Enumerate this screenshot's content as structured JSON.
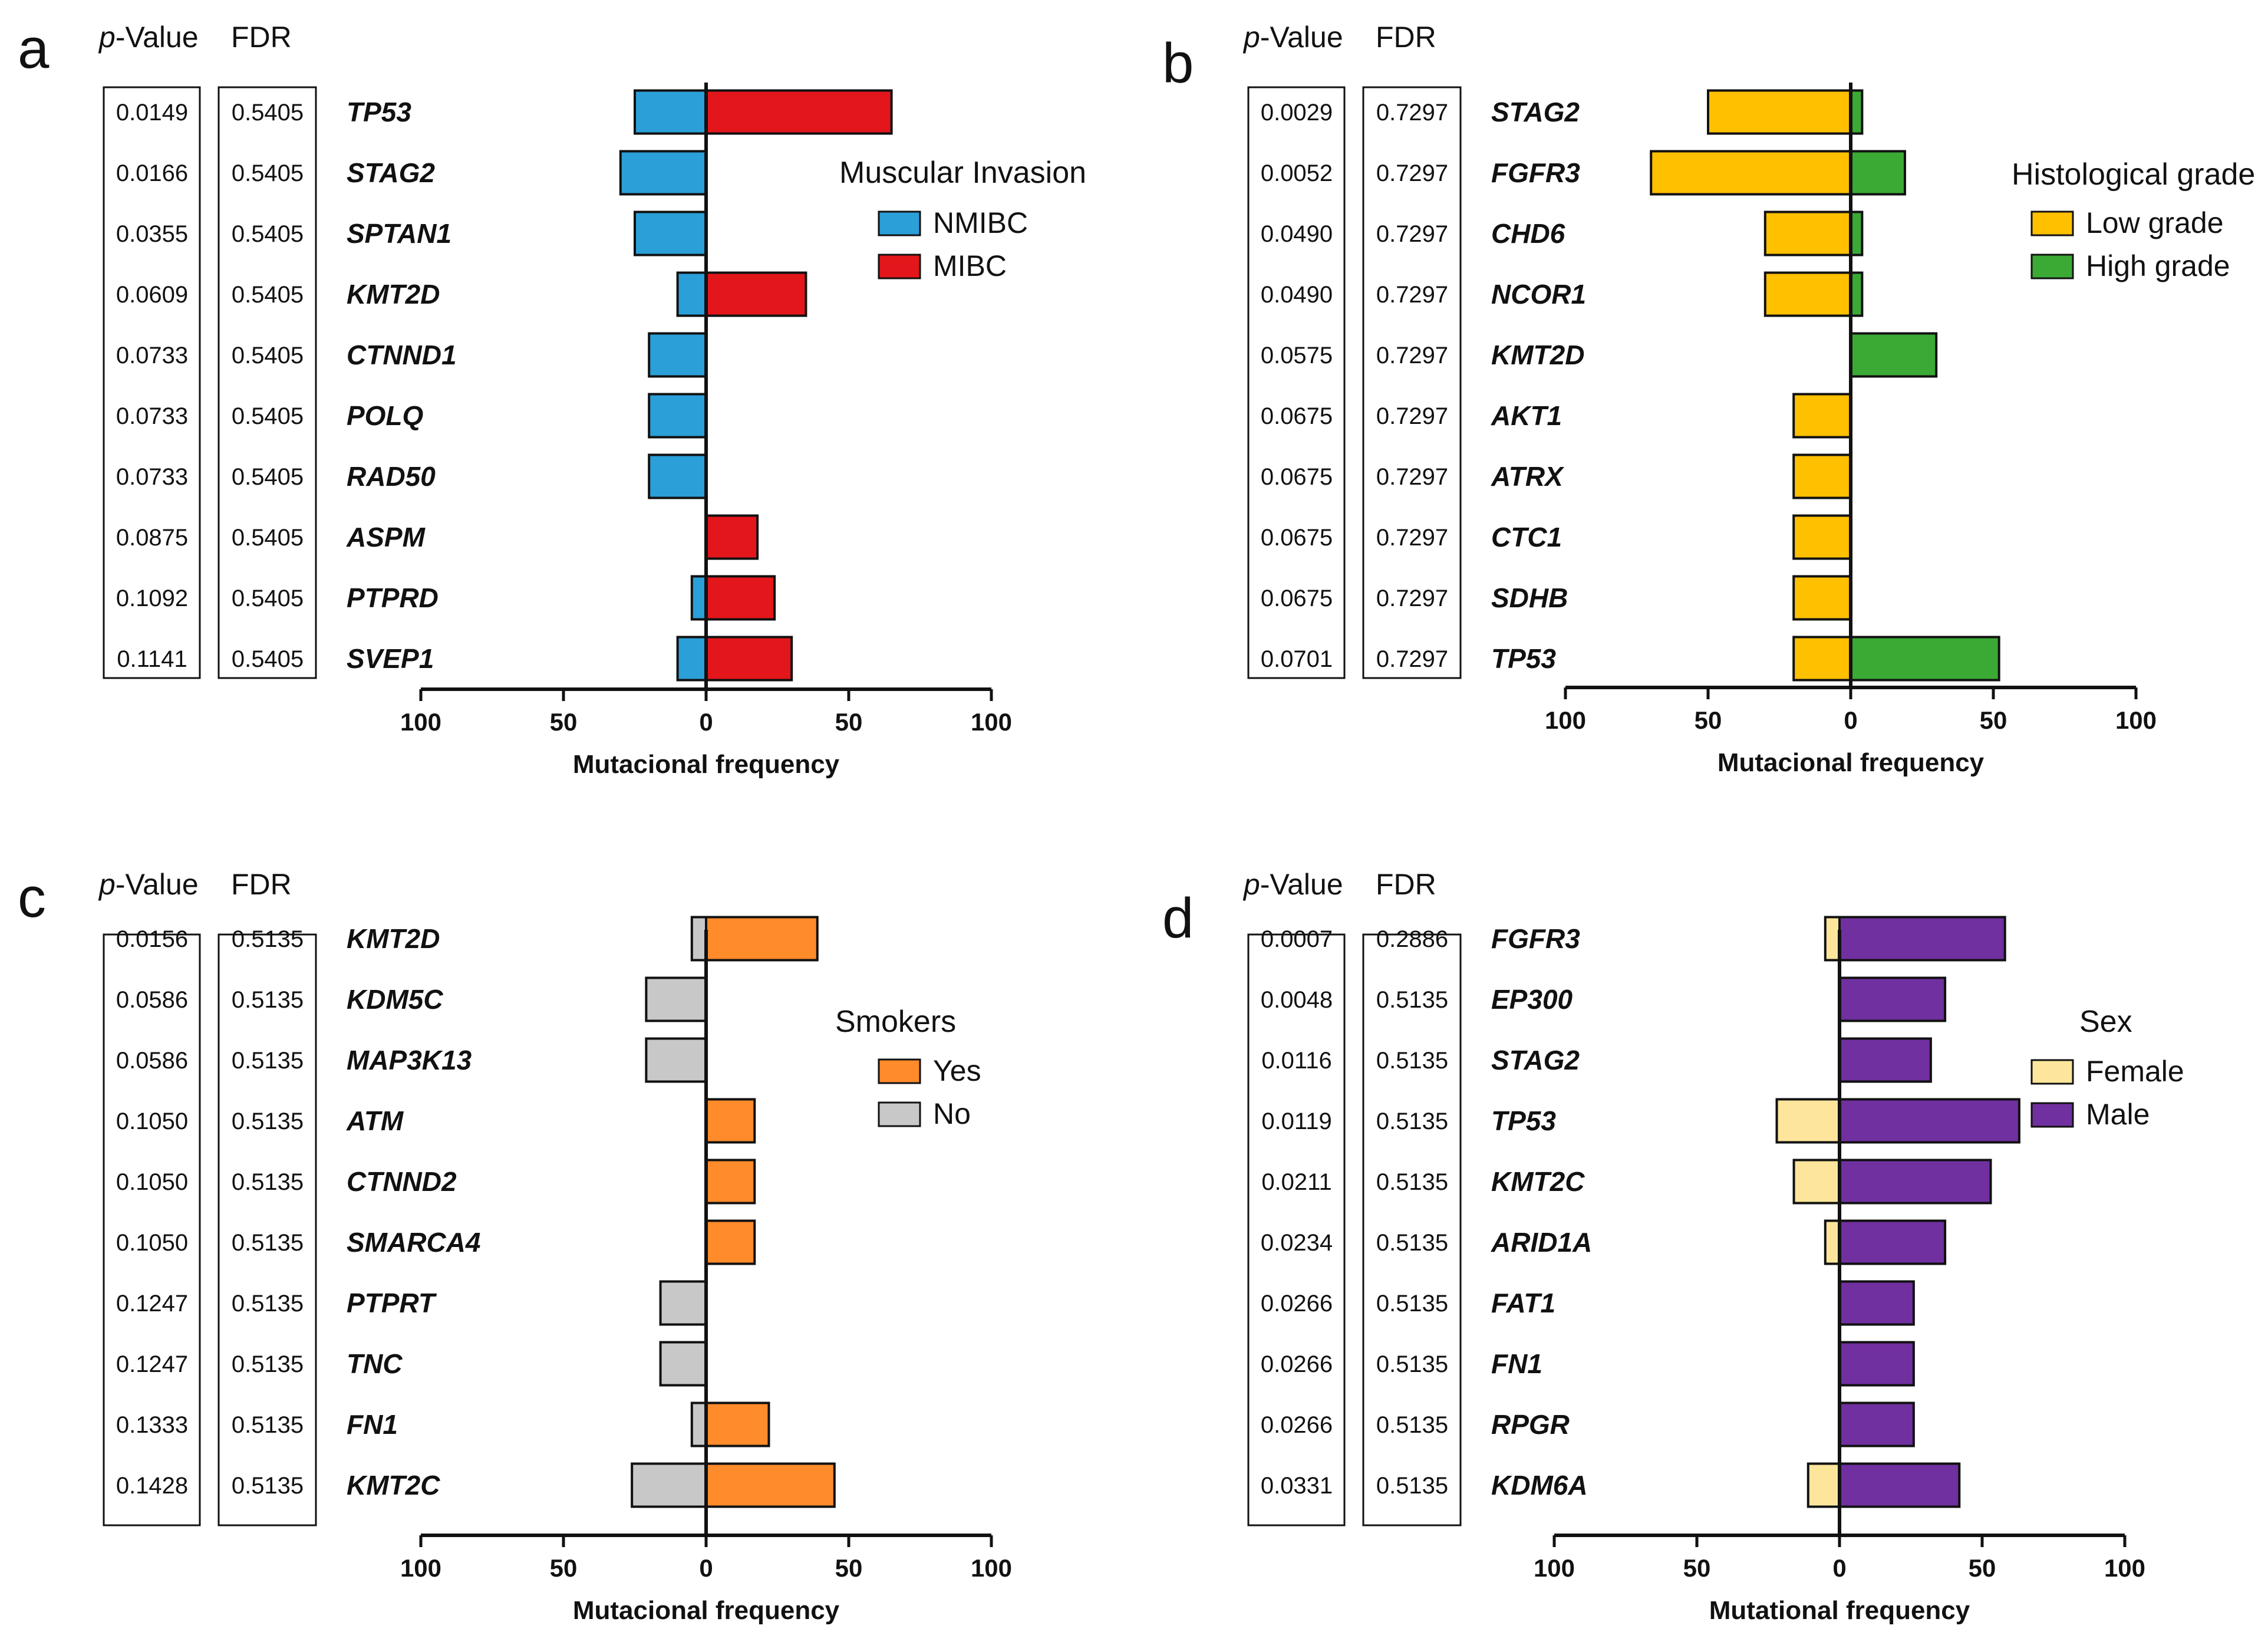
{
  "figure": {
    "column_headers": {
      "pvalue_italic": "p",
      "pvalue_rest": "-Value",
      "fdr": "FDR"
    }
  },
  "chart_data": [
    {
      "panel": "a",
      "type": "bar",
      "orientation": "horizontal-diverging",
      "legend_title": "Muscular Invasion",
      "xlabel": "Mutacional frequency",
      "xlim": [
        -100,
        100
      ],
      "xticks": [
        100,
        50,
        0,
        50,
        100
      ],
      "categories": [
        "TP53",
        "STAG2",
        "SPTAN1",
        "KMT2D",
        "CTNND1",
        "POLQ",
        "RAD50",
        "ASPM",
        "PTPRD",
        "SVEP1"
      ],
      "pvalues": [
        "0.0149",
        "0.0166",
        "0.0355",
        "0.0609",
        "0.0733",
        "0.0733",
        "0.0733",
        "0.0875",
        "0.1092",
        "0.1141"
      ],
      "fdr": [
        "0.5405",
        "0.5405",
        "0.5405",
        "0.5405",
        "0.5405",
        "0.5405",
        "0.5405",
        "0.5405",
        "0.5405",
        "0.5405"
      ],
      "series": [
        {
          "name": "NMIBC",
          "side": "left",
          "color": "#2b9fd8",
          "values": [
            25,
            30,
            25,
            10,
            20,
            20,
            20,
            0,
            5,
            10
          ]
        },
        {
          "name": "MIBC",
          "side": "right",
          "color": "#e3161b",
          "values": [
            65,
            0,
            0,
            35,
            0,
            0,
            0,
            18,
            24,
            30
          ]
        }
      ]
    },
    {
      "panel": "b",
      "type": "bar",
      "orientation": "horizontal-diverging",
      "legend_title": "Histological grade",
      "xlabel": "Mutacional frequency",
      "xlim": [
        -100,
        100
      ],
      "xticks": [
        100,
        50,
        0,
        50,
        100
      ],
      "categories": [
        "STAG2",
        "FGFR3",
        "CHD6",
        "NCOR1",
        "KMT2D",
        "AKT1",
        "ATRX",
        "CTC1",
        "SDHB",
        "TP53"
      ],
      "pvalues": [
        "0.0029",
        "0.0052",
        "0.0490",
        "0.0490",
        "0.0575",
        "0.0675",
        "0.0675",
        "0.0675",
        "0.0675",
        "0.0701"
      ],
      "fdr": [
        "0.7297",
        "0.7297",
        "0.7297",
        "0.7297",
        "0.7297",
        "0.7297",
        "0.7297",
        "0.7297",
        "0.7297",
        "0.7297"
      ],
      "series": [
        {
          "name": "Low grade",
          "side": "left",
          "color": "#ffc000",
          "values": [
            50,
            70,
            30,
            30,
            0,
            20,
            20,
            20,
            20,
            20
          ]
        },
        {
          "name": "High grade",
          "side": "right",
          "color": "#3aaa35",
          "values": [
            4,
            19,
            4,
            4,
            30,
            0,
            0,
            0,
            0,
            52
          ]
        }
      ]
    },
    {
      "panel": "c",
      "type": "bar",
      "orientation": "horizontal-diverging",
      "legend_title": "Smokers",
      "xlabel": "Mutacional frequency",
      "xlim": [
        -100,
        100
      ],
      "xticks": [
        100,
        50,
        0,
        50,
        100
      ],
      "categories": [
        "KMT2D",
        "KDM5C",
        "MAP3K13",
        "ATM",
        "CTNND2",
        "SMARCA4",
        "PTPRT",
        "TNC",
        "FN1",
        "KMT2C"
      ],
      "pvalues": [
        "0.0156",
        "0.0586",
        "0.0586",
        "0.1050",
        "0.1050",
        "0.1050",
        "0.1247",
        "0.1247",
        "0.1333",
        "0.1428"
      ],
      "fdr": [
        "0.5135",
        "0.5135",
        "0.5135",
        "0.5135",
        "0.5135",
        "0.5135",
        "0.5135",
        "0.5135",
        "0.5135",
        "0.5135"
      ],
      "series": [
        {
          "name": "Yes",
          "side": "right",
          "color": "#ff8b2b",
          "values": [
            39,
            0,
            0,
            17,
            17,
            17,
            0,
            0,
            22,
            45
          ]
        },
        {
          "name": "No",
          "side": "left",
          "color": "#c8c8c8",
          "values": [
            5,
            21,
            21,
            0,
            0,
            0,
            16,
            16,
            5,
            26
          ]
        }
      ]
    },
    {
      "panel": "d",
      "type": "bar",
      "orientation": "horizontal-diverging",
      "legend_title": "Sex",
      "xlabel": "Mutational frequency",
      "xlim": [
        -100,
        100
      ],
      "xticks": [
        100,
        50,
        0,
        50,
        100
      ],
      "categories": [
        "FGFR3",
        "EP300",
        "STAG2",
        "TP53",
        "KMT2C",
        "ARID1A",
        "FAT1",
        "FN1",
        "RPGR",
        "KDM6A"
      ],
      "pvalues": [
        "0.0007",
        "0.0048",
        "0.0116",
        "0.0119",
        "0.0211",
        "0.0234",
        "0.0266",
        "0.0266",
        "0.0266",
        "0.0331"
      ],
      "fdr": [
        "0.2886",
        "0.5135",
        "0.5135",
        "0.5135",
        "0.5135",
        "0.5135",
        "0.5135",
        "0.5135",
        "0.5135",
        "0.5135"
      ],
      "series": [
        {
          "name": "Female",
          "side": "left",
          "color": "#fde69b",
          "values": [
            5,
            0,
            0,
            22,
            16,
            5,
            0,
            0,
            0,
            11
          ]
        },
        {
          "name": "Male",
          "side": "right",
          "color": "#7030a0",
          "values": [
            58,
            37,
            32,
            63,
            53,
            37,
            26,
            26,
            26,
            42
          ]
        }
      ]
    }
  ]
}
